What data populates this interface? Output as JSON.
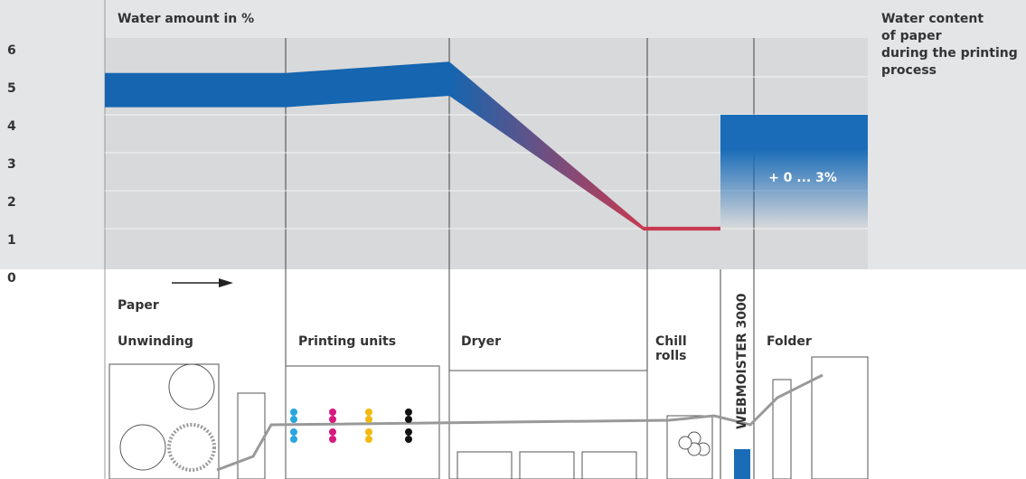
{
  "chart_data": {
    "type": "band",
    "title": "Water amount in %",
    "annotation": [
      "Water content",
      "of paper",
      "during the printing",
      "process"
    ],
    "ylim": [
      0,
      6
    ],
    "yticks": [
      0,
      1,
      2,
      3,
      4,
      5,
      6
    ],
    "upper": [
      5.1,
      5.1,
      5.4,
      1.05,
      1.05
    ],
    "lower": [
      4.2,
      4.2,
      4.5,
      0.95,
      0.95
    ],
    "color_start": "#1565b0",
    "color_end": "#c73a52",
    "adjustment": {
      "label": "+ 0 ... 3%",
      "low": 1,
      "high": 4,
      "color": "#1a6cb8"
    },
    "direction_label": "Paper",
    "stages": [
      "Unwinding",
      "Printing units",
      "Dryer",
      "Chill rolls",
      "WEBMOISTER 3000",
      "Folder"
    ]
  }
}
